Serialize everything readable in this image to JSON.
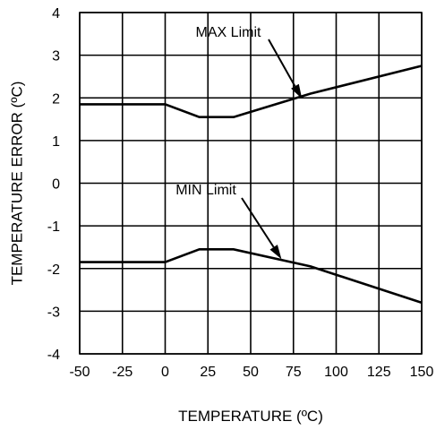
{
  "chart_data": {
    "type": "line",
    "title": "",
    "xlabel": "TEMPERATURE (ºC)",
    "ylabel": "TEMPERATURE ERROR (ºC)",
    "xlim": [
      -50,
      150
    ],
    "ylim": [
      -4,
      4
    ],
    "x_ticks": [
      "-50",
      "-25",
      "0",
      "25",
      "50",
      "75",
      "100",
      "125",
      "150"
    ],
    "y_ticks": [
      "-4",
      "-3",
      "-2",
      "-1",
      "0",
      "1",
      "2",
      "3",
      "4"
    ],
    "grid": true,
    "legend": "none",
    "series": [
      {
        "name": "MAX Limit",
        "x": [
          -50,
          0,
          20,
          40,
          85,
          150
        ],
        "y": [
          1.85,
          1.85,
          1.55,
          1.55,
          2.1,
          2.75
        ]
      },
      {
        "name": "MIN Limit",
        "x": [
          -50,
          0,
          20,
          40,
          85,
          150
        ],
        "y": [
          -1.85,
          -1.85,
          -1.55,
          -1.55,
          -1.95,
          -2.8
        ]
      }
    ],
    "annotations": [
      {
        "text": "MAX Limit",
        "arrow_to_x": 80,
        "arrow_to_y": 1.98
      },
      {
        "text": "MIN Limit",
        "arrow_to_x": 68,
        "arrow_to_y": -1.78
      }
    ]
  }
}
